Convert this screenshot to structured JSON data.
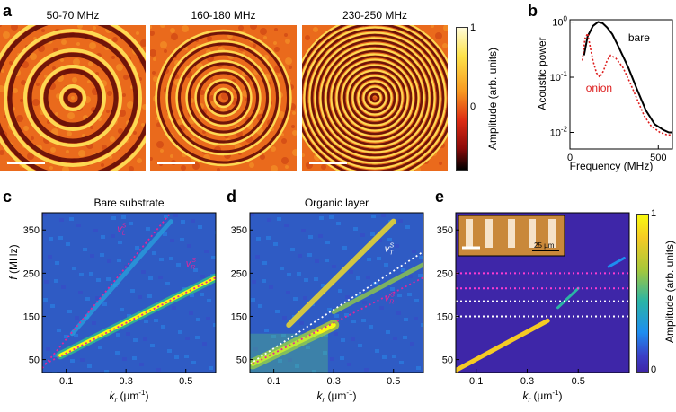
{
  "panels": {
    "a": {
      "label": "a",
      "titles": [
        "50-70 MHz",
        "160-180 MHz",
        "230-250 MHz"
      ],
      "colorbar": {
        "label": "Amplitude (arb. units)",
        "ticks": [
          "1",
          "0"
        ]
      }
    },
    "b": {
      "label": "b",
      "chart_data": {
        "type": "line",
        "xlabel": "Frequency (MHz)",
        "ylabel": "Acoustic power",
        "yscale": "log",
        "xlim": [
          0,
          580
        ],
        "ylim": [
          0.005,
          1.1
        ],
        "xticks": [
          "0",
          "500"
        ],
        "yticks": [
          "10^0",
          "10^-1",
          "10^-2"
        ],
        "series": [
          {
            "name": "bare",
            "color": "#000000",
            "style": "solid",
            "x": [
              80,
              100,
              130,
              160,
              185,
              210,
              240,
              280,
              330,
              380,
              430,
              480,
              530,
              560,
              580
            ],
            "y": [
              0.25,
              0.55,
              0.85,
              1.0,
              0.95,
              0.8,
              0.6,
              0.33,
              0.15,
              0.06,
              0.025,
              0.014,
              0.011,
              0.01,
              0.01
            ]
          },
          {
            "name": "onion",
            "color": "#dd1c1c",
            "style": "dotted",
            "x": [
              70,
              85,
              100,
              115,
              130,
              150,
              170,
              190,
              210,
              230,
              260,
              300,
              340,
              380,
              420,
              460,
              510,
              550,
              580
            ],
            "y": [
              0.2,
              0.5,
              0.62,
              0.35,
              0.2,
              0.12,
              0.1,
              0.13,
              0.2,
              0.25,
              0.22,
              0.15,
              0.08,
              0.04,
              0.02,
              0.013,
              0.01,
              0.009,
              0.009
            ]
          }
        ]
      }
    },
    "c": {
      "label": "c",
      "title": "Bare substrate",
      "chart_data": {
        "type": "heatmap",
        "xlabel": "k_r (µm⁻¹)",
        "ylabel": "f (MHz)",
        "xlim": [
          0.02,
          0.6
        ],
        "ylim": [
          20,
          390
        ],
        "xticks": [
          0.1,
          0.3,
          0.5
        ],
        "yticks": [
          50,
          150,
          250,
          350
        ],
        "annotations": [
          "v_L^S",
          "v_R^S"
        ],
        "lines": [
          {
            "name": "v_L^S",
            "x": [
              0.02,
              0.45
            ],
            "y": [
              30,
              390
            ]
          },
          {
            "name": "v_R^S",
            "x": [
              0.03,
              0.6
            ],
            "y": [
              40,
              240
            ]
          }
        ]
      }
    },
    "d": {
      "label": "d",
      "title": "Organic layer",
      "chart_data": {
        "type": "heatmap",
        "xlabel": "k_r (µm⁻¹)",
        "ylabel": "",
        "xlim": [
          0.02,
          0.6
        ],
        "ylim": [
          20,
          390
        ],
        "xticks": [
          0.1,
          0.3,
          0.5
        ],
        "yticks": [
          50,
          150,
          250,
          350
        ],
        "annotations": [
          "v_T^S",
          "v_R^S"
        ],
        "lines": [
          {
            "name": "v_T^S",
            "x": [
              0.02,
              0.6
            ],
            "y": [
              40,
              300
            ]
          },
          {
            "name": "v_R^S",
            "x": [
              0.03,
              0.6
            ],
            "y": [
              40,
              240
            ]
          }
        ]
      }
    },
    "e": {
      "label": "e",
      "chart_data": {
        "type": "heatmap",
        "xlabel": "k_r (µm⁻¹)",
        "ylabel": "",
        "xlim": [
          0.02,
          0.7
        ],
        "ylim": [
          20,
          390
        ],
        "xticks": [
          0.1,
          0.3,
          0.5
        ],
        "yticks": [
          50,
          150,
          250,
          350
        ],
        "hlines": [
          {
            "y": 250,
            "color": "#ff3bd2"
          },
          {
            "y": 215,
            "color": "#ff3bd2"
          },
          {
            "y": 185,
            "color": "#ffffff"
          },
          {
            "y": 150,
            "color": "#ffffff"
          }
        ],
        "inset_scale": "25 µm"
      },
      "colorbar": {
        "label": "Amplitude (arb. units)",
        "ticks": [
          "1",
          "0"
        ]
      }
    }
  }
}
